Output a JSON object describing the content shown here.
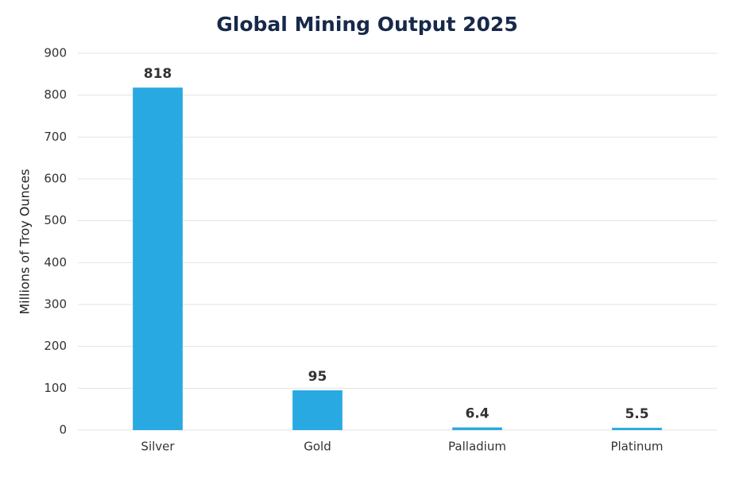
{
  "chart_data": {
    "type": "bar",
    "title": "Global Mining Output 2025",
    "y_label": "Millions of Troy Ounces",
    "categories": [
      "Silver",
      "Gold",
      "Palladium",
      "Platinum"
    ],
    "values": [
      818,
      95,
      6.4,
      5.5
    ],
    "color": "#29a9e1",
    "ylim": [
      0,
      900
    ],
    "yticks": [
      0,
      100,
      200,
      300,
      400,
      500,
      600,
      700,
      800,
      900
    ],
    "grid": true
  }
}
